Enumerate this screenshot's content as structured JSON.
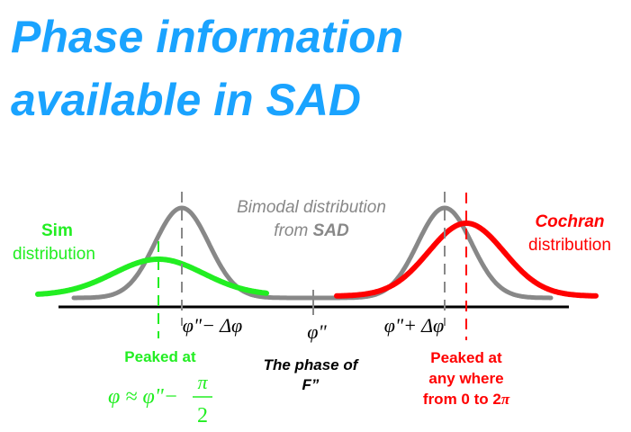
{
  "slide": {
    "title_line1": "Phase information",
    "title_line2": "available in SAD"
  },
  "diagram": {
    "sim": {
      "title": "Sim",
      "subtitle": "distribution",
      "color": "#22ee22"
    },
    "cochran": {
      "title": "Cochran",
      "subtitle": "distribution",
      "color": "#ff0000"
    },
    "bimodal": {
      "line1": "Bimodal distribution",
      "line2_prefix": "from ",
      "line2_bold": "SAD",
      "color": "#888888"
    },
    "axis_labels": {
      "left": "φ\"− Δφ",
      "center": "φ\"",
      "right": "φ\"+ Δφ"
    },
    "notes": {
      "sim_peak": "Peaked at",
      "sim_formula_lhs": "φ ≈ φ\"−",
      "sim_formula_num": "π",
      "sim_formula_den": "2",
      "phase_line1": "The phase of",
      "phase_line2": "F”",
      "cochran_line1": "Peaked at",
      "cochran_line2": "any where",
      "cochran_line3": "from 0 to 2",
      "cochran_pi": "π"
    }
  }
}
